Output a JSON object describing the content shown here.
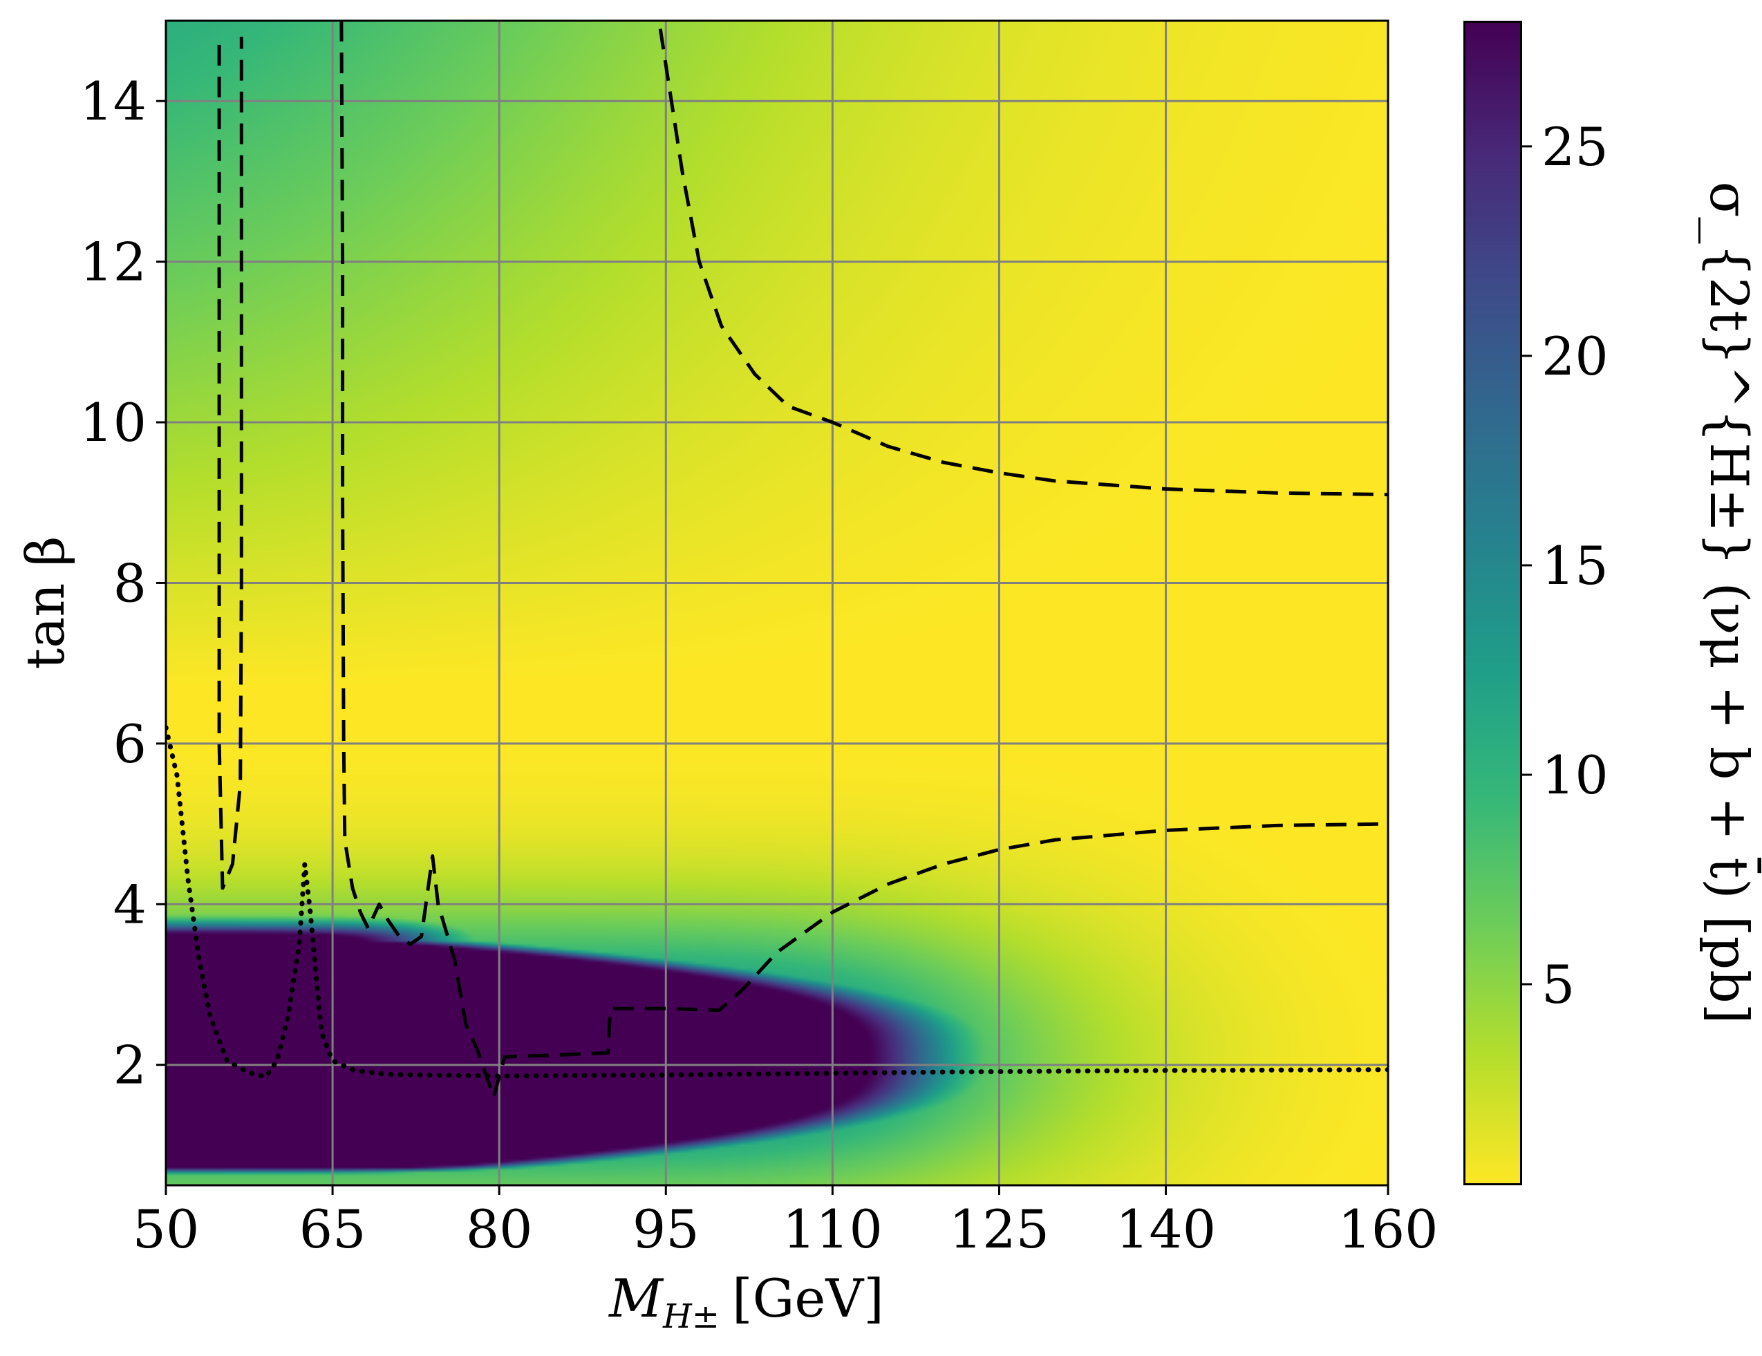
{
  "chart_data": {
    "type": "heatmap",
    "title": "",
    "xlabel": "M_{H±} [GeV]",
    "xlabel_main": "M",
    "xlabel_sub": "H±",
    "xlabel_unit": "[GeV]",
    "ylabel": "tan β",
    "xlim": [
      50,
      160
    ],
    "ylim": [
      0.5,
      15
    ],
    "x_ticks": [
      50,
      65,
      80,
      95,
      110,
      125,
      140,
      160
    ],
    "x_tick_labels": [
      "50",
      "65",
      "80",
      "95",
      "110",
      "125",
      "140",
      "160"
    ],
    "y_ticks": [
      2,
      4,
      6,
      8,
      10,
      12,
      14
    ],
    "y_tick_labels": [
      "2",
      "4",
      "6",
      "8",
      "10",
      "12",
      "14"
    ],
    "grid": true,
    "colormap": "viridis_r",
    "colorbar": {
      "label": "σ_{2t}^{H±} (νμ + b + t̄) [pb]",
      "range": [
        0.2,
        28
      ],
      "ticks": [
        5,
        10,
        15,
        20,
        25
      ],
      "tick_labels": [
        "5",
        "10",
        "15",
        "20",
        "25"
      ]
    },
    "contours": [
      {
        "style": "dashed",
        "points": [
          [
            54.8,
            14.7
          ],
          [
            54.8,
            12
          ],
          [
            54.8,
            9
          ],
          [
            54.8,
            6
          ],
          [
            55.1,
            4.2
          ],
          [
            56,
            4.5
          ],
          [
            56.7,
            5.5
          ],
          [
            56.8,
            8
          ],
          [
            56.8,
            11
          ],
          [
            56.8,
            14.8
          ]
        ]
      },
      {
        "style": "dashed",
        "points": [
          [
            65.8,
            15.0
          ],
          [
            65.9,
            12
          ],
          [
            65.9,
            9
          ],
          [
            66.0,
            6
          ],
          [
            66.1,
            4.8
          ],
          [
            66.8,
            4.2
          ],
          [
            67.5,
            3.9
          ],
          [
            68.2,
            3.7
          ],
          [
            69.2,
            4.0
          ],
          [
            70,
            3.8
          ],
          [
            71,
            3.6
          ],
          [
            72,
            3.5
          ],
          [
            73,
            3.6
          ],
          [
            74,
            4.6
          ],
          [
            74.5,
            4.0
          ],
          [
            76,
            3.3
          ],
          [
            77,
            2.5
          ],
          [
            78,
            2.2
          ],
          [
            79.5,
            1.6
          ],
          [
            80.5,
            2.1
          ],
          [
            85,
            2.12
          ],
          [
            89.8,
            2.15
          ],
          [
            90,
            2.7
          ],
          [
            95,
            2.7
          ],
          [
            99.8,
            2.68
          ],
          [
            102,
            2.95
          ],
          [
            105,
            3.4
          ],
          [
            110,
            3.9
          ],
          [
            115,
            4.25
          ],
          [
            120,
            4.5
          ],
          [
            125,
            4.68
          ],
          [
            130,
            4.8
          ],
          [
            140,
            4.92
          ],
          [
            150,
            4.98
          ],
          [
            160,
            5.0
          ]
        ]
      },
      {
        "style": "dashed",
        "points": [
          [
            94.5,
            14.9
          ],
          [
            95.5,
            14.0
          ],
          [
            96.5,
            13.1
          ],
          [
            98,
            12.0
          ],
          [
            100,
            11.2
          ],
          [
            103,
            10.6
          ],
          [
            106,
            10.2
          ],
          [
            110,
            10.0
          ],
          [
            115,
            9.7
          ],
          [
            120,
            9.5
          ],
          [
            125,
            9.37
          ],
          [
            130,
            9.27
          ],
          [
            140,
            9.17
          ],
          [
            150,
            9.12
          ],
          [
            160,
            9.1
          ]
        ]
      },
      {
        "style": "dotted",
        "points": [
          [
            50,
            6.2
          ],
          [
            51,
            5.6
          ],
          [
            52,
            4.3
          ],
          [
            53,
            3.3
          ],
          [
            54,
            2.6
          ],
          [
            55.5,
            2.05
          ],
          [
            57.5,
            1.9
          ],
          [
            59,
            1.85
          ],
          [
            60,
            2.05
          ],
          [
            61,
            2.6
          ],
          [
            62,
            3.5
          ],
          [
            62.5,
            4.5
          ],
          [
            63,
            3.9
          ],
          [
            64,
            2.4
          ],
          [
            65,
            2.05
          ],
          [
            67,
            1.93
          ],
          [
            70,
            1.88
          ],
          [
            80,
            1.86
          ],
          [
            100,
            1.88
          ],
          [
            120,
            1.91
          ],
          [
            140,
            1.93
          ],
          [
            160,
            1.94
          ]
        ]
      }
    ]
  }
}
